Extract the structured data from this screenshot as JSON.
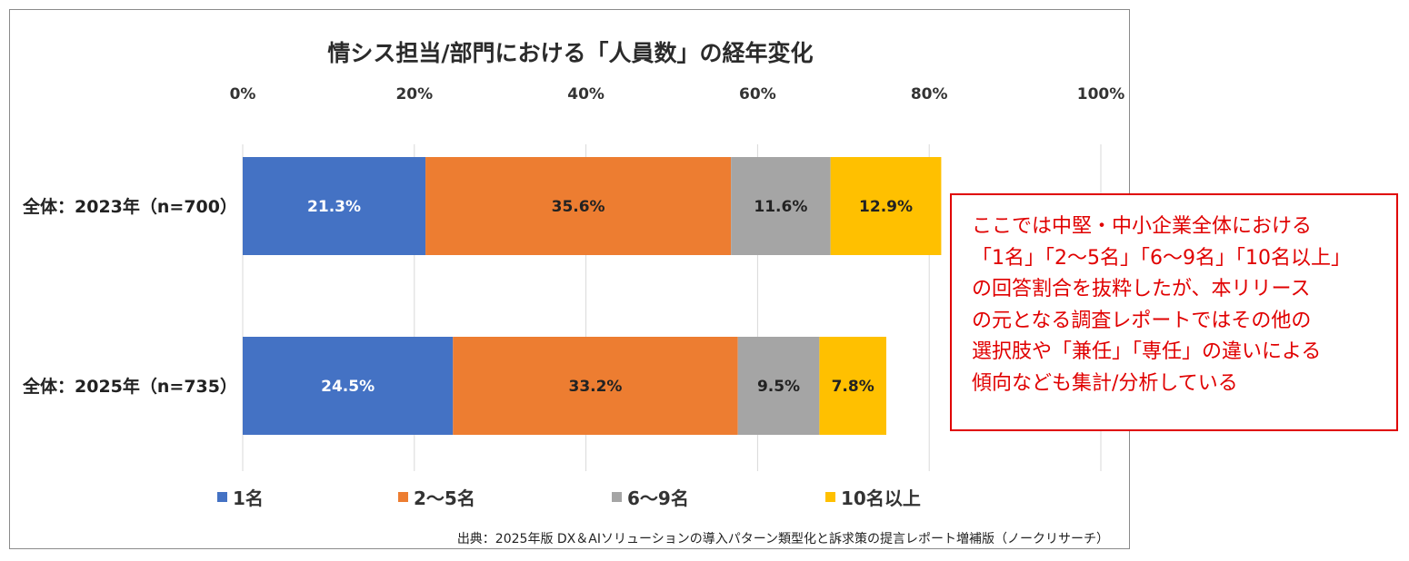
{
  "chart_data": {
    "type": "bar",
    "orientation": "horizontal",
    "stacked": true,
    "title": "情シス担当/部門における「人員数」の経年変化",
    "categories": [
      "全体：2023年（n=700）",
      "全体：2025年（n=735）"
    ],
    "series": [
      {
        "name": "1名",
        "color": "#4472c4",
        "label_color": "#ffffff",
        "values": [
          21.3,
          24.5
        ],
        "labels": [
          "21.3%",
          "24.5%"
        ]
      },
      {
        "name": "2〜5名",
        "color": "#ed7d31",
        "label_color": "#222222",
        "values": [
          35.6,
          33.2
        ],
        "labels": [
          "35.6%",
          "33.2%"
        ]
      },
      {
        "name": "6〜9名",
        "color": "#a5a5a5",
        "label_color": "#222222",
        "values": [
          11.6,
          9.5
        ],
        "labels": [
          "11.6%",
          "9.5%"
        ]
      },
      {
        "name": "10名以上",
        "color": "#ffc000",
        "label_color": "#222222",
        "values": [
          12.9,
          7.8
        ],
        "labels": [
          "12.9%",
          "7.8%"
        ]
      }
    ],
    "xlim": [
      0,
      100
    ],
    "xticks": [
      0,
      20,
      40,
      60,
      80,
      100
    ],
    "xtick_labels": [
      "0%",
      "20%",
      "40%",
      "60%",
      "80%",
      "100%"
    ],
    "grid": true,
    "legend_position": "bottom"
  },
  "source_note": "出典：2025年版 DX＆AIソリューションの導入パターン類型化と訴求策の提言レポート増補版（ノークリサーチ）",
  "callout": {
    "text": "ここでは中堅・中小企業全体における\n「1名」「2～5名」「6～9名」「10名以上」\nの回答割合を抜粋したが、本リリース\nの元となる調査レポートではその他の\n選択肢や「兼任」「専任」の違いによる\n傾向なども集計/分析している"
  }
}
